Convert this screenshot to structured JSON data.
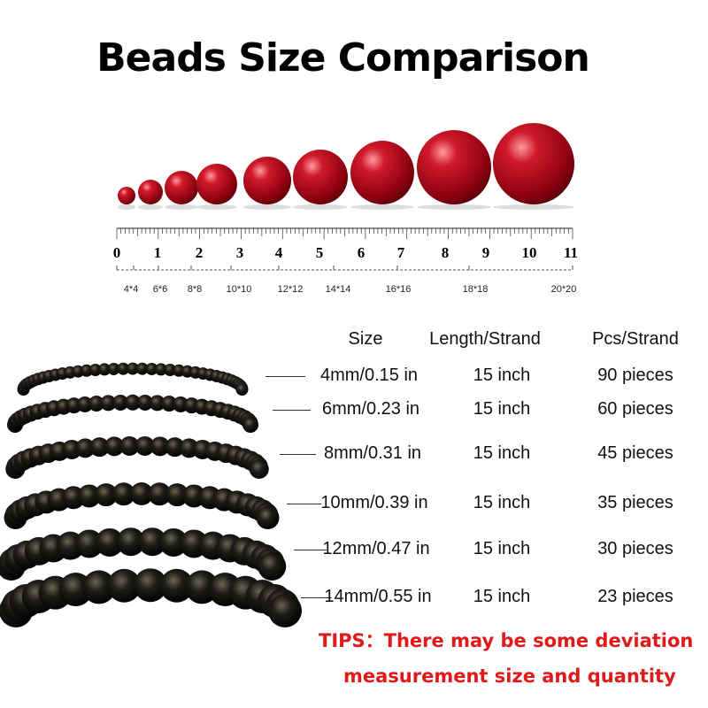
{
  "title": "Beads Size Comparison",
  "ruler": {
    "numbers": [
      "0",
      "1",
      "2",
      "3",
      "4",
      "5",
      "6",
      "7",
      "8",
      "9",
      "10",
      "11"
    ],
    "size_labels": [
      "4*4",
      "6*6",
      "8*8",
      "10*10",
      "12*12",
      "14*14",
      "16*16",
      "18*18",
      "20*20"
    ]
  },
  "bead_color": "#b3101e",
  "table": {
    "headers": [
      "Size",
      "Length/Strand",
      "Pcs/Strand"
    ],
    "rows": [
      {
        "size": "4mm/0.15 in",
        "length": "15 inch",
        "pcs": "90 pieces"
      },
      {
        "size": "6mm/0.23 in",
        "length": "15 inch",
        "pcs": "60 pieces"
      },
      {
        "size": "8mm/0.31 in",
        "length": "15 inch",
        "pcs": "45 pieces"
      },
      {
        "size": "10mm/0.39 in",
        "length": "15 inch",
        "pcs": "35 pieces"
      },
      {
        "size": "12mm/0.47 in",
        "length": "15 inch",
        "pcs": "30 pieces"
      },
      {
        "size": "14mm/0.55 in",
        "length": "15 inch",
        "pcs": "23 pieces"
      }
    ]
  },
  "tips": {
    "line1": "TIPS：There may be some deviation",
    "line2": "measurement size and quantity",
    "color": "#e0191b"
  }
}
